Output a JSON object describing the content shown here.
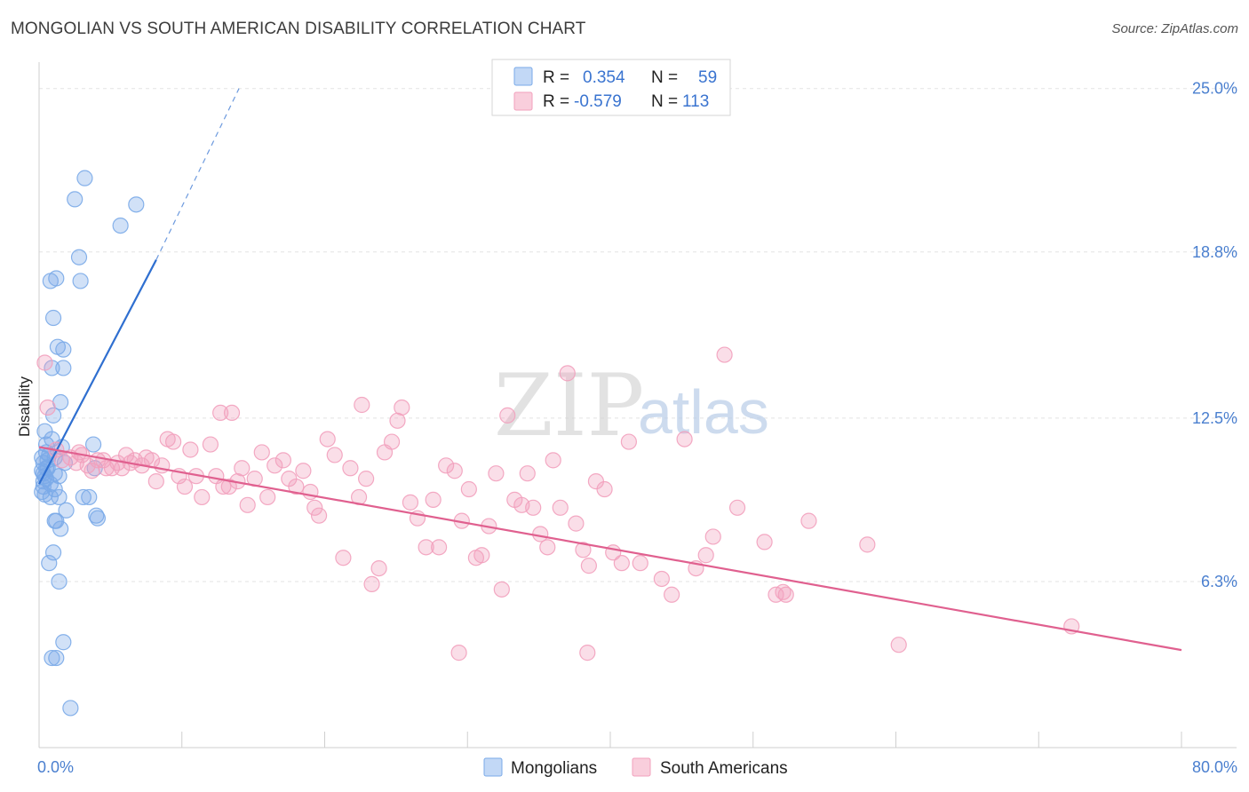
{
  "title": "MONGOLIAN VS SOUTH AMERICAN DISABILITY CORRELATION CHART",
  "source": "Source: ZipAtlas.com",
  "watermark": {
    "part1": "ZIP",
    "part2": "atlas"
  },
  "chart_data": {
    "type": "scatter",
    "ylabel": "Disability",
    "x_range": [
      0,
      80
    ],
    "y_range": [
      0,
      26
    ],
    "x_tick_labels": [
      {
        "value": 0,
        "label": "0.0%"
      },
      {
        "value": 80,
        "label": "80.0%"
      }
    ],
    "y_tick_labels": [
      {
        "value": 6.3,
        "label": "6.3%"
      },
      {
        "value": 12.5,
        "label": "12.5%"
      },
      {
        "value": 18.8,
        "label": "18.8%"
      },
      {
        "value": 25.0,
        "label": "25.0%"
      }
    ],
    "grid": true,
    "legend_top": [
      {
        "r_label": "R =",
        "r_value": "0.354",
        "n_label": "N =",
        "n_value": "59",
        "color": "#8fb8ee"
      },
      {
        "r_label": "R =",
        "r_value": "-0.579",
        "n_label": "N =",
        "n_value": "113",
        "color": "#f4a6bf"
      }
    ],
    "series": [
      {
        "name": "Mongolians",
        "color": "#7aaae8",
        "line_color": "#2f6fd0",
        "trend": {
          "x0": 0,
          "y0": 10.0,
          "x1": 8.2,
          "y1": 18.5,
          "dash_x1": 14,
          "dash_y1": 25.0
        },
        "points": [
          [
            3.2,
            21.6
          ],
          [
            2.5,
            20.8
          ],
          [
            6.8,
            20.6
          ],
          [
            5.7,
            19.8
          ],
          [
            2.8,
            18.6
          ],
          [
            0.8,
            17.7
          ],
          [
            1.2,
            17.8
          ],
          [
            2.9,
            17.7
          ],
          [
            1.0,
            16.3
          ],
          [
            1.3,
            15.2
          ],
          [
            1.7,
            15.1
          ],
          [
            0.9,
            14.4
          ],
          [
            1.7,
            14.4
          ],
          [
            1.5,
            13.1
          ],
          [
            1.0,
            12.6
          ],
          [
            0.4,
            12.0
          ],
          [
            0.9,
            11.7
          ],
          [
            0.5,
            11.5
          ],
          [
            1.6,
            11.4
          ],
          [
            3.8,
            11.5
          ],
          [
            0.2,
            11.0
          ],
          [
            0.7,
            11.1
          ],
          [
            1.1,
            11.0
          ],
          [
            0.3,
            10.8
          ],
          [
            1.8,
            10.8
          ],
          [
            0.5,
            10.6
          ],
          [
            0.6,
            10.6
          ],
          [
            3.9,
            10.6
          ],
          [
            0.3,
            10.4
          ],
          [
            1.1,
            10.4
          ],
          [
            1.4,
            10.3
          ],
          [
            0.4,
            10.3
          ],
          [
            0.5,
            10.2
          ],
          [
            0.8,
            10.0
          ],
          [
            0.3,
            9.9
          ],
          [
            1.1,
            9.8
          ],
          [
            0.4,
            9.6
          ],
          [
            0.8,
            9.5
          ],
          [
            3.1,
            9.5
          ],
          [
            3.5,
            9.5
          ],
          [
            1.4,
            9.5
          ],
          [
            1.9,
            9.0
          ],
          [
            4.0,
            8.8
          ],
          [
            4.1,
            8.7
          ],
          [
            1.2,
            8.6
          ],
          [
            1.1,
            8.6
          ],
          [
            1.5,
            8.3
          ],
          [
            1.0,
            7.4
          ],
          [
            0.7,
            7.0
          ],
          [
            1.4,
            6.3
          ],
          [
            1.7,
            4.0
          ],
          [
            0.9,
            3.4
          ],
          [
            1.2,
            3.4
          ],
          [
            2.2,
            1.5
          ],
          [
            0.2,
            10.5
          ],
          [
            0.6,
            10.9
          ],
          [
            0.3,
            10.1
          ],
          [
            0.2,
            9.7
          ],
          [
            0.5,
            11.2
          ]
        ]
      },
      {
        "name": "South Americans",
        "color": "#f2a0bc",
        "line_color": "#e0608f",
        "trend": {
          "x0": 0,
          "y0": 11.4,
          "x1": 80,
          "y1": 3.7
        },
        "points": [
          [
            0.4,
            14.6
          ],
          [
            0.6,
            12.9
          ],
          [
            1.2,
            11.3
          ],
          [
            1.6,
            10.9
          ],
          [
            2.2,
            11.0
          ],
          [
            2.6,
            10.8
          ],
          [
            2.8,
            11.2
          ],
          [
            3.0,
            11.1
          ],
          [
            3.4,
            10.7
          ],
          [
            3.7,
            10.5
          ],
          [
            4.1,
            10.9
          ],
          [
            4.5,
            10.9
          ],
          [
            4.7,
            10.6
          ],
          [
            5.1,
            10.6
          ],
          [
            5.5,
            10.8
          ],
          [
            5.8,
            10.6
          ],
          [
            6.1,
            11.1
          ],
          [
            6.4,
            10.8
          ],
          [
            6.7,
            10.9
          ],
          [
            7.2,
            10.7
          ],
          [
            7.5,
            11.0
          ],
          [
            7.9,
            10.9
          ],
          [
            8.2,
            10.1
          ],
          [
            8.6,
            10.7
          ],
          [
            9.0,
            11.7
          ],
          [
            9.4,
            11.6
          ],
          [
            9.8,
            10.3
          ],
          [
            10.2,
            9.9
          ],
          [
            10.6,
            11.3
          ],
          [
            11.0,
            10.3
          ],
          [
            11.4,
            9.5
          ],
          [
            12.0,
            11.5
          ],
          [
            12.4,
            10.3
          ],
          [
            12.9,
            9.9
          ],
          [
            13.3,
            9.9
          ],
          [
            13.9,
            10.1
          ],
          [
            14.2,
            10.6
          ],
          [
            14.6,
            9.2
          ],
          [
            15.1,
            10.2
          ],
          [
            15.6,
            11.2
          ],
          [
            16.0,
            9.5
          ],
          [
            16.5,
            10.7
          ],
          [
            17.1,
            10.9
          ],
          [
            17.5,
            10.2
          ],
          [
            18.0,
            9.9
          ],
          [
            18.5,
            10.5
          ],
          [
            19.0,
            9.7
          ],
          [
            19.3,
            9.1
          ],
          [
            19.6,
            8.8
          ],
          [
            20.2,
            11.7
          ],
          [
            20.7,
            11.1
          ],
          [
            21.3,
            7.2
          ],
          [
            21.8,
            10.6
          ],
          [
            22.4,
            9.5
          ],
          [
            22.9,
            10.2
          ],
          [
            23.3,
            6.2
          ],
          [
            23.8,
            6.8
          ],
          [
            24.2,
            11.2
          ],
          [
            24.7,
            11.6
          ],
          [
            25.1,
            12.4
          ],
          [
            25.4,
            12.9
          ],
          [
            26.0,
            9.3
          ],
          [
            26.5,
            8.7
          ],
          [
            27.1,
            7.6
          ],
          [
            27.6,
            9.4
          ],
          [
            28.0,
            7.6
          ],
          [
            28.5,
            10.7
          ],
          [
            29.1,
            10.5
          ],
          [
            29.6,
            8.6
          ],
          [
            30.1,
            9.8
          ],
          [
            30.6,
            7.2
          ],
          [
            31.0,
            7.3
          ],
          [
            31.5,
            8.4
          ],
          [
            32.0,
            10.4
          ],
          [
            32.4,
            6.0
          ],
          [
            32.8,
            12.6
          ],
          [
            33.3,
            9.4
          ],
          [
            33.8,
            9.2
          ],
          [
            34.2,
            10.4
          ],
          [
            34.6,
            9.1
          ],
          [
            35.1,
            8.1
          ],
          [
            35.6,
            7.6
          ],
          [
            36.0,
            10.9
          ],
          [
            36.5,
            9.1
          ],
          [
            37.0,
            14.2
          ],
          [
            37.6,
            8.5
          ],
          [
            38.1,
            7.5
          ],
          [
            38.5,
            6.9
          ],
          [
            39.0,
            10.1
          ],
          [
            39.6,
            9.8
          ],
          [
            40.2,
            7.4
          ],
          [
            40.8,
            7.0
          ],
          [
            41.3,
            11.6
          ],
          [
            42.1,
            7.0
          ],
          [
            43.6,
            6.4
          ],
          [
            44.3,
            5.8
          ],
          [
            45.2,
            11.7
          ],
          [
            46.0,
            6.8
          ],
          [
            46.7,
            7.3
          ],
          [
            47.2,
            8.0
          ],
          [
            48.0,
            14.9
          ],
          [
            48.9,
            9.1
          ],
          [
            50.8,
            7.8
          ],
          [
            52.3,
            5.8
          ],
          [
            53.9,
            8.6
          ],
          [
            51.6,
            5.8
          ],
          [
            52.1,
            5.9
          ],
          [
            58.0,
            7.7
          ],
          [
            60.2,
            3.9
          ],
          [
            72.3,
            4.6
          ],
          [
            29.4,
            3.6
          ],
          [
            38.4,
            3.6
          ],
          [
            12.7,
            12.7
          ],
          [
            13.5,
            12.7
          ],
          [
            22.6,
            13.0
          ]
        ]
      }
    ]
  }
}
